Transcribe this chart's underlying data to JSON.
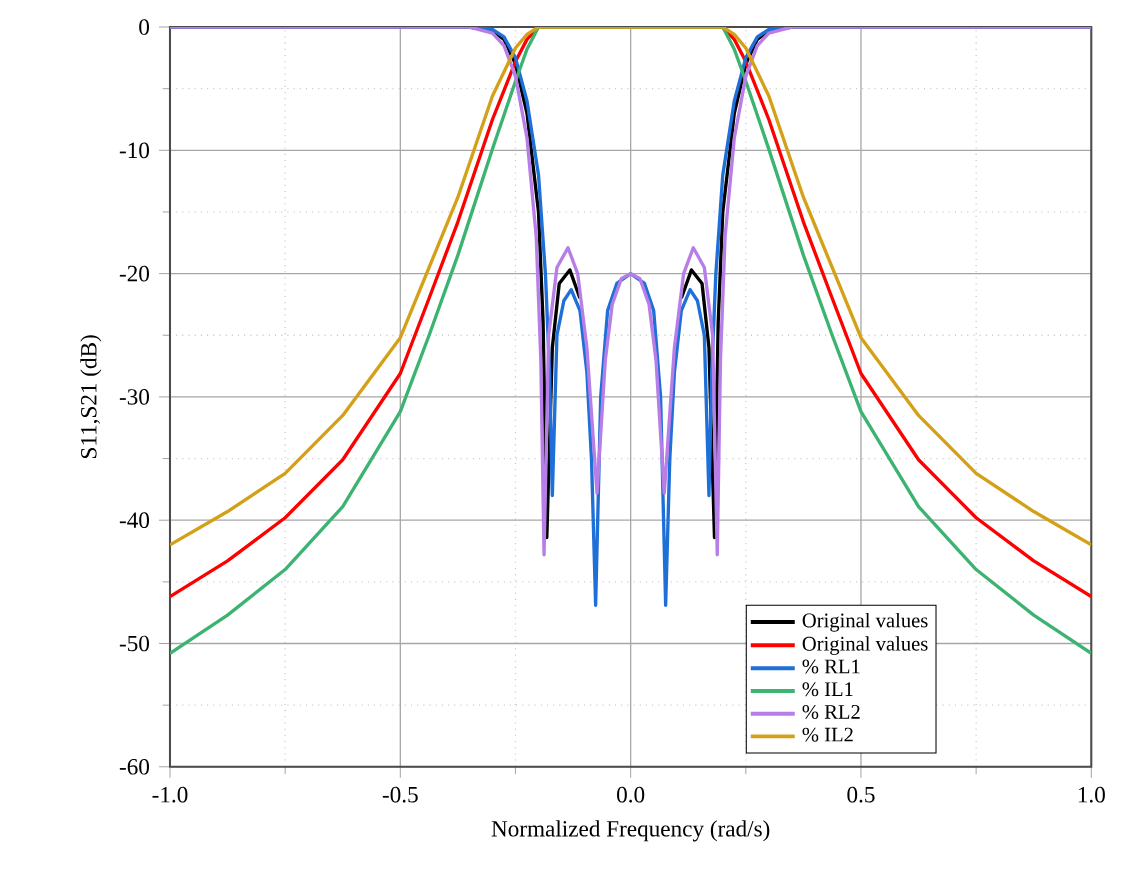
{
  "chart_data": {
    "type": "line",
    "xlabel": "Normalized Frequency (rad/s)",
    "ylabel": "S11,S21 (dB)",
    "xlim": [
      -1,
      1
    ],
    "ylim": [
      -60,
      0
    ],
    "xticks": [
      {
        "value": -1,
        "label": "-1.0"
      },
      {
        "value": -0.75,
        "label": null
      },
      {
        "value": -0.5,
        "label": "-0.5"
      },
      {
        "value": -0.25,
        "label": null
      },
      {
        "value": 0,
        "label": "0.0"
      },
      {
        "value": 0.25,
        "label": null
      },
      {
        "value": 0.5,
        "label": "0.5"
      },
      {
        "value": 0.75,
        "label": null
      },
      {
        "value": 1,
        "label": "1.0"
      }
    ],
    "yticks": [
      -60,
      {
        "value": -55,
        "label": null
      },
      -50,
      {
        "value": -45,
        "label": null
      },
      -40,
      {
        "value": -35,
        "label": null
      },
      -30,
      {
        "value": -25,
        "label": null
      },
      -20,
      {
        "value": -15,
        "label": null
      },
      -10,
      {
        "value": -5,
        "label": null
      },
      0
    ],
    "grid": true,
    "legend": "bottom right",
    "marker": "none",
    "line_style": "solid",
    "series": [
      {
        "name": "Original values",
        "color": "#000000",
        "x": [
          -1,
          -0.35,
          -0.3,
          -0.275,
          -0.25,
          -0.225,
          -0.2,
          -0.19,
          -0.182,
          -0.17,
          -0.155,
          -0.132,
          -0.11,
          -0.095,
          -0.076,
          -0.06,
          -0.04,
          -0.02,
          0,
          0.02,
          0.04,
          0.06,
          0.076,
          0.095,
          0.11,
          0.132,
          0.155,
          0.17,
          0.182,
          0.19,
          0.2,
          0.225,
          0.25,
          0.275,
          0.3,
          0.35,
          1
        ],
        "values": [
          0,
          0,
          -0.3,
          -1,
          -3,
          -7,
          -15,
          -24,
          -41.4,
          -26,
          -20.8,
          -19.7,
          -22,
          null,
          null,
          null,
          null,
          null,
          null,
          null,
          null,
          null,
          null,
          null,
          -22,
          -19.7,
          -20.8,
          -26,
          -41.4,
          -24,
          -15,
          -7,
          -3,
          -1,
          -0.3,
          0,
          0
        ]
      },
      {
        "name": "Original values",
        "color": "#ff0000",
        "x": [
          -1,
          -0.875,
          -0.75,
          -0.625,
          -0.5,
          -0.4375,
          -0.375,
          -0.3,
          -0.25,
          -0.225,
          -0.2,
          0,
          0.2,
          0.225,
          0.25,
          0.3,
          0.375,
          0.4375,
          0.5,
          0.625,
          0.75,
          0.875,
          1
        ],
        "values": [
          -46.2,
          -43.3,
          -39.8,
          -35.1,
          -28.1,
          -22,
          -15.8,
          -7.5,
          -2.8,
          -1,
          0,
          0,
          0,
          -1,
          -2.8,
          -7.5,
          -15.8,
          -22,
          -28.1,
          -35.1,
          -39.8,
          -43.3,
          -46.2
        ]
      },
      {
        "name": "% RL1",
        "color": "#1f6fd8",
        "x": [
          -1,
          -0.35,
          -0.3,
          -0.275,
          -0.25,
          -0.225,
          -0.2,
          -0.185,
          -0.176,
          -0.17,
          -0.16,
          -0.145,
          -0.129,
          -0.11,
          -0.095,
          -0.085,
          -0.076,
          -0.065,
          -0.05,
          -0.03,
          0,
          0.03,
          0.05,
          0.065,
          0.076,
          0.085,
          0.095,
          0.11,
          0.129,
          0.145,
          0.16,
          0.17,
          0.176,
          0.185,
          0.2,
          0.225,
          0.25,
          0.275,
          0.3,
          0.35,
          1
        ],
        "values": [
          0,
          0,
          -0.2,
          -0.8,
          -2.5,
          -6,
          -12,
          -20,
          -28,
          -38,
          -25,
          -22.2,
          -21.3,
          -23,
          -28,
          -35,
          -46.9,
          -30,
          -23,
          -20.8,
          -20,
          -20.8,
          -23,
          -30,
          -46.9,
          -35,
          -28,
          -23,
          -21.3,
          -22.2,
          -25,
          -38,
          -28,
          -20,
          -12,
          -6,
          -2.5,
          -0.8,
          -0.2,
          0,
          0
        ]
      },
      {
        "name": "% IL1",
        "color": "#3cb371",
        "x": [
          -1,
          -0.875,
          -0.75,
          -0.625,
          -0.5,
          -0.4375,
          -0.375,
          -0.3,
          -0.25,
          -0.225,
          -0.2,
          0,
          0.2,
          0.225,
          0.25,
          0.3,
          0.375,
          0.4375,
          0.5,
          0.625,
          0.75,
          0.875,
          1
        ],
        "values": [
          -50.8,
          -47.7,
          -44,
          -38.9,
          -31.2,
          -25,
          -18.5,
          -9.9,
          -4.4,
          -1.8,
          0,
          0,
          0,
          -1.8,
          -4.4,
          -9.9,
          -18.5,
          -25,
          -31.2,
          -38.9,
          -44,
          -47.7,
          -50.8
        ]
      },
      {
        "name": "% RL2",
        "color": "#b77ee8",
        "x": [
          -1,
          -0.35,
          -0.3,
          -0.275,
          -0.25,
          -0.225,
          -0.205,
          -0.195,
          -0.188,
          -0.178,
          -0.16,
          -0.136,
          -0.115,
          -0.095,
          -0.073,
          -0.055,
          -0.04,
          -0.02,
          0,
          0.02,
          0.04,
          0.055,
          0.073,
          0.095,
          0.115,
          0.136,
          0.16,
          0.178,
          0.188,
          0.195,
          0.205,
          0.225,
          0.25,
          0.275,
          0.3,
          0.35,
          1
        ],
        "values": [
          0,
          0,
          -0.5,
          -1.5,
          -4,
          -9,
          -17,
          -27,
          -42.8,
          -25,
          -19.5,
          -17.9,
          -20,
          -26,
          -37.8,
          -27,
          -22.5,
          -20.4,
          -20,
          -20.4,
          -22.5,
          -27,
          -37.8,
          -26,
          -20,
          -17.9,
          -19.5,
          -25,
          -42.8,
          -27,
          -17,
          -9,
          -4,
          -1.5,
          -0.5,
          0,
          0
        ]
      },
      {
        "name": "% IL2",
        "color": "#d4a017",
        "x": [
          -1,
          -0.875,
          -0.75,
          -0.625,
          -0.5,
          -0.4375,
          -0.375,
          -0.3,
          -0.25,
          -0.225,
          -0.2,
          0,
          0.2,
          0.225,
          0.25,
          0.3,
          0.375,
          0.4375,
          0.5,
          0.625,
          0.75,
          0.875,
          1
        ],
        "values": [
          -42,
          -39.3,
          -36.2,
          -31.5,
          -25.2,
          -19.5,
          -13.8,
          -5.6,
          -1.7,
          -0.6,
          0,
          0,
          0,
          -0.6,
          -1.7,
          -5.6,
          -13.8,
          -19.5,
          -25.2,
          -31.5,
          -36.2,
          -39.3,
          -42
        ]
      }
    ]
  }
}
